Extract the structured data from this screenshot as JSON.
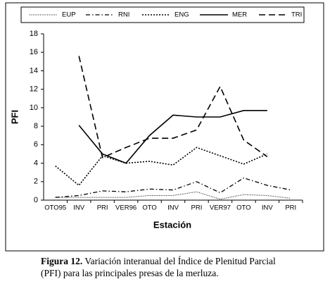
{
  "chart_data": {
    "type": "line",
    "y_label": "PFI",
    "x_label": "Estación",
    "categories": [
      "OTO95",
      "INV",
      "PRI",
      "VER96",
      "OTO",
      "INV",
      "PRI",
      "VER97",
      "OTO",
      "INV",
      "PRI"
    ],
    "ylim": [
      0,
      18
    ],
    "yticks": [
      0,
      2,
      4,
      6,
      8,
      10,
      12,
      14,
      16,
      18
    ],
    "series": [
      {
        "name": "EUP",
        "color": "#000000",
        "dash": "1,1.5",
        "width": 1,
        "values": [
          0.3,
          0.3,
          0.3,
          0.3,
          0.5,
          0.5,
          0.9,
          0.1,
          0.6,
          0.5,
          0.2
        ]
      },
      {
        "name": "RNI",
        "color": "#000000",
        "dash": "6,3,1.5,3",
        "width": 1.3,
        "values": [
          0.3,
          0.5,
          1.0,
          0.9,
          1.2,
          1.1,
          2.0,
          0.8,
          2.4,
          1.6,
          1.1
        ]
      },
      {
        "name": "ENG",
        "color": "#000000",
        "dash": "2,2",
        "width": 1.6,
        "values": [
          3.7,
          1.6,
          4.8,
          4.0,
          4.2,
          3.8,
          5.7,
          4.8,
          3.9,
          5.0,
          null
        ]
      },
      {
        "name": "MER",
        "color": "#000000",
        "dash": "none",
        "width": 1.6,
        "values": [
          null,
          8.1,
          5.0,
          4.0,
          7.0,
          9.2,
          9.0,
          9.0,
          9.7,
          9.7,
          null
        ]
      },
      {
        "name": "TRI",
        "color": "#000000",
        "dash": "9,5",
        "width": 1.6,
        "values": [
          null,
          15.6,
          4.6,
          5.7,
          6.7,
          6.7,
          7.6,
          12.3,
          6.5,
          4.7,
          null
        ]
      }
    ]
  },
  "caption": {
    "label": "Figura 12.",
    "text": "Variación  interanual del Índice de Plenitud Parcial (PFI) para las principales presas de la merluza."
  }
}
